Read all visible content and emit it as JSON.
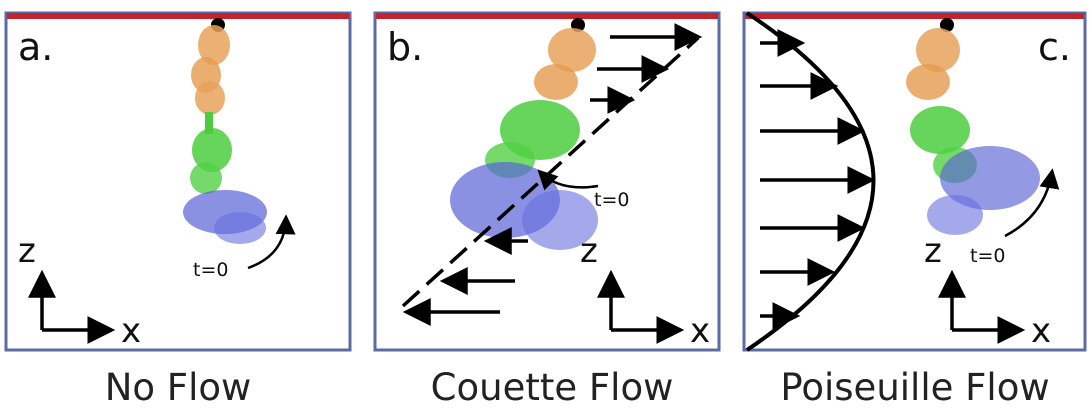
{
  "colors": {
    "frame": "#5c6ba1",
    "wall": "#c4232b",
    "anchor": "#000000",
    "arrow": "#000000",
    "domain_top": "#e8a25a",
    "domain_mid": "#4ccc3f",
    "domain_bottom": "#5a62d6"
  },
  "panels": [
    {
      "letter": "a.",
      "caption": "No Flow",
      "axis_z": "z",
      "axis_x": "x",
      "t0": "t=0"
    },
    {
      "letter": "b.",
      "caption": "Couette Flow",
      "axis_z": "z",
      "axis_x": "x",
      "t0": "t=0"
    },
    {
      "letter": "c.",
      "caption": "Poiseuille Flow",
      "axis_z": "z",
      "axis_x": "x",
      "t0": "t=0"
    }
  ]
}
